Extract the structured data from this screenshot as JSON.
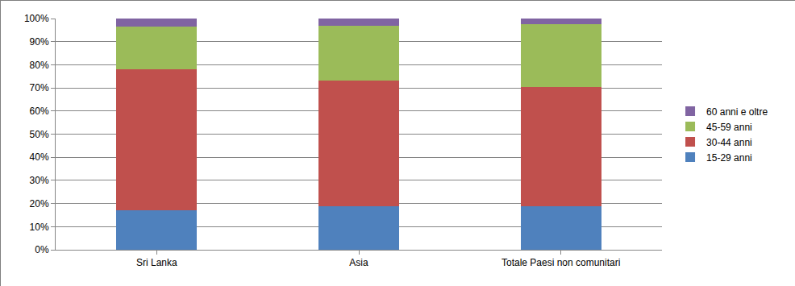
{
  "chart_data": {
    "type": "bar",
    "stacked": true,
    "categories": [
      "Sri Lanka",
      "Asia",
      "Totale Paesi non comunitari"
    ],
    "series": [
      {
        "name": "15-29 anni",
        "color": "#4f81bd",
        "values": [
          17,
          18.7,
          18.7
        ]
      },
      {
        "name": "30-44 anni",
        "color": "#c0504d",
        "values": [
          61,
          54.3,
          51.8
        ]
      },
      {
        "name": "45-59 anni",
        "color": "#9bbb59",
        "values": [
          18.5,
          24,
          27
        ]
      },
      {
        "name": "60 anni e oltre",
        "color": "#8064a2",
        "values": [
          3.5,
          3,
          2.5
        ]
      }
    ],
    "ylim": [
      0,
      100
    ],
    "yticks": [
      {
        "value": 0,
        "label": "0%"
      },
      {
        "value": 10,
        "label": "10%"
      },
      {
        "value": 20,
        "label": "20%"
      },
      {
        "value": 30,
        "label": "30%"
      },
      {
        "value": 40,
        "label": "40%"
      },
      {
        "value": 50,
        "label": "50%"
      },
      {
        "value": 60,
        "label": "60%"
      },
      {
        "value": 70,
        "label": "70%"
      },
      {
        "value": 80,
        "label": "80%"
      },
      {
        "value": 90,
        "label": "90%"
      },
      {
        "value": 100,
        "label": "100%"
      }
    ],
    "grid": true,
    "legend": "right"
  }
}
